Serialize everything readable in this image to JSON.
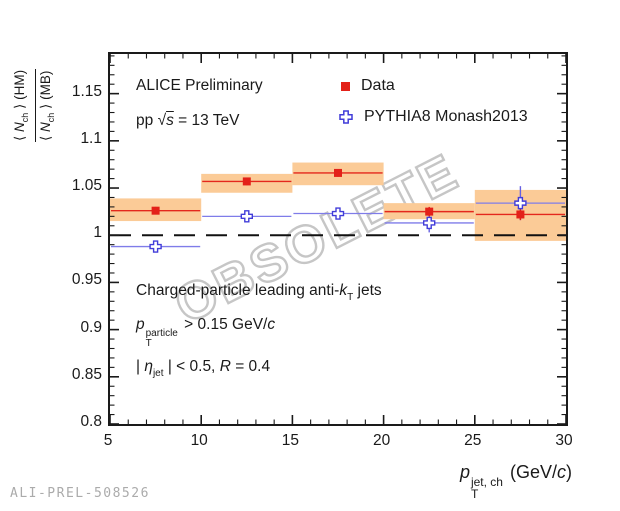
{
  "watermark": {
    "text": "OBSOLETE"
  },
  "footer_id": "ALI-PREL-508526",
  "annotations": {
    "experiment": "ALICE Preliminary",
    "collision_pre": "pp ",
    "sqrt_sym": "√",
    "sqrt_arg": "s",
    "collision_post": " = 13 TeV",
    "jets_pre": "Charged-particle leading anti-",
    "jets_k": "k",
    "jets_k_sub": "T",
    "jets_post": " jets",
    "pt_p": "p",
    "pt_sup": "particle",
    "pt_sub": "T",
    "pt_rest": " > 0.15 GeV/",
    "pt_c": "c",
    "eta_open": "| ",
    "eta_sym": "η",
    "eta_sub": "jet",
    "eta_mid": " | < 0.5, ",
    "eta_R": "R",
    "eta_post": " = 0.4"
  },
  "legend": {
    "items": [
      {
        "label": "Data",
        "marker": "filled-square",
        "color": "#e32119"
      },
      {
        "label": "PYTHIA8 Monash2013",
        "marker": "open-cross",
        "color": "#413cd9"
      }
    ]
  },
  "y_axis": {
    "title": {
      "numerator": {
        "open": "⟨ ",
        "sym": "N",
        "sub": "ch",
        "close": " ⟩",
        "suffix": " (HM)"
      },
      "denominator": {
        "open": "⟨ ",
        "sym": "N",
        "sub": "ch",
        "close": " ⟩",
        "suffix": " (MB)"
      }
    },
    "tick_values": [
      0.8,
      0.85,
      0.9,
      0.95,
      1.0,
      1.05,
      1.1,
      1.15
    ],
    "tick_labels": [
      "0.8",
      "0.85",
      "0.9",
      "0.95",
      "1",
      "1.05",
      "1.1",
      "1.15"
    ],
    "minor_step": 0.01
  },
  "x_axis": {
    "title": {
      "p": "p",
      "sup": "jet, ch",
      "sub": "T",
      "rest": " (GeV/",
      "c": "c",
      "close": ")"
    },
    "tick_values": [
      5,
      10,
      15,
      20,
      25,
      30
    ],
    "tick_labels": [
      "5",
      "10",
      "15",
      "20",
      "25",
      "30"
    ],
    "minor_step": 1
  },
  "chart_data": {
    "type": "scatter",
    "title": "",
    "xlabel": "p_T^{jet, ch} (GeV/c)",
    "ylabel": "<N_ch>(HM) / <N_ch>(MB)",
    "x_range": [
      5,
      30
    ],
    "y_range": [
      0.8,
      1.192
    ],
    "grid": false,
    "legend_position": "top-right-inside",
    "reference_line_y": 1.0,
    "bins": [
      [
        5,
        10
      ],
      [
        10,
        15
      ],
      [
        15,
        20
      ],
      [
        20,
        25
      ],
      [
        25,
        30
      ]
    ],
    "bin_centers": [
      7.5,
      12.5,
      17.5,
      22.5,
      27.5
    ],
    "series": [
      {
        "name": "Data",
        "marker": "filled-square",
        "color": "#e32119",
        "line_color": "#e4271c",
        "band_color": "#fbcb97",
        "y": [
          1.026,
          1.057,
          1.066,
          1.025,
          1.022
        ],
        "stat_err": [
          0.004,
          0.004,
          0.004,
          0.005,
          0.006
        ],
        "syst_lo": [
          1.015,
          1.045,
          1.053,
          1.017,
          0.994
        ],
        "syst_hi": [
          1.039,
          1.065,
          1.077,
          1.034,
          1.048
        ]
      },
      {
        "name": "PYTHIA8 Monash2013",
        "marker": "open-cross",
        "color": "#413cd9",
        "line_color": "#7f7ce9",
        "y": [
          0.988,
          1.02,
          1.023,
          1.013,
          1.034
        ],
        "stat_err": [
          0.004,
          0.004,
          0.005,
          0.01,
          0.018
        ]
      }
    ]
  }
}
